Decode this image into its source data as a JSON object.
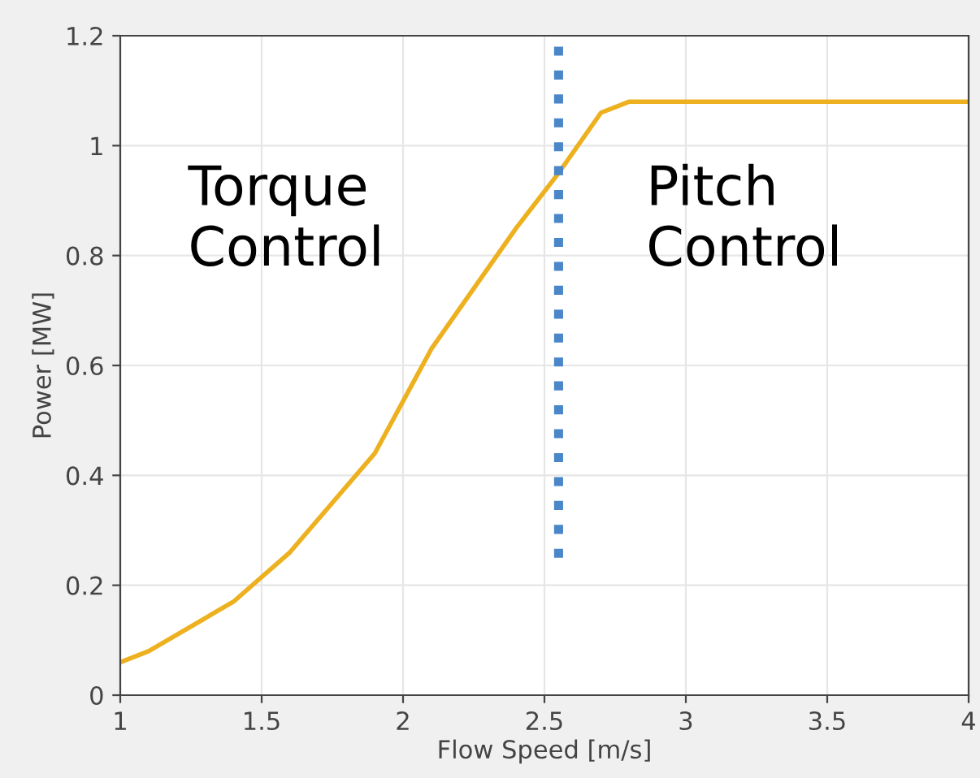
{
  "chart_data": {
    "type": "line",
    "xlabel": "Flow Speed [m/s]",
    "ylabel": "Power [MW]",
    "xlim": [
      1,
      4
    ],
    "xticks": [
      1,
      1.5,
      2,
      2.5,
      3,
      3.5,
      4
    ],
    "ylim": [
      0,
      1.2
    ],
    "yticks": [
      0,
      0.2,
      0.4,
      0.6,
      0.8,
      1,
      1.2
    ],
    "grid": true,
    "marker": "none",
    "annotations": [
      "Torque\nControl",
      "Pitch\nControl"
    ],
    "series": [
      {
        "color": "#edb120",
        "line_style": "solid",
        "x": [
          1,
          1.1,
          1.4,
          1.6,
          1.9,
          2.1,
          2.4,
          2.55,
          2.7,
          2.8,
          4
        ],
        "values": [
          0.06,
          0.08,
          0.17,
          0.26,
          0.44,
          0.63,
          0.85,
          0.95,
          1.06,
          1.08,
          1.08
        ]
      },
      {
        "color": "#4a86c8",
        "line_style": "dotted",
        "x": [
          2.55,
          2.55
        ],
        "values": [
          0.25,
          1.2
        ]
      }
    ]
  }
}
